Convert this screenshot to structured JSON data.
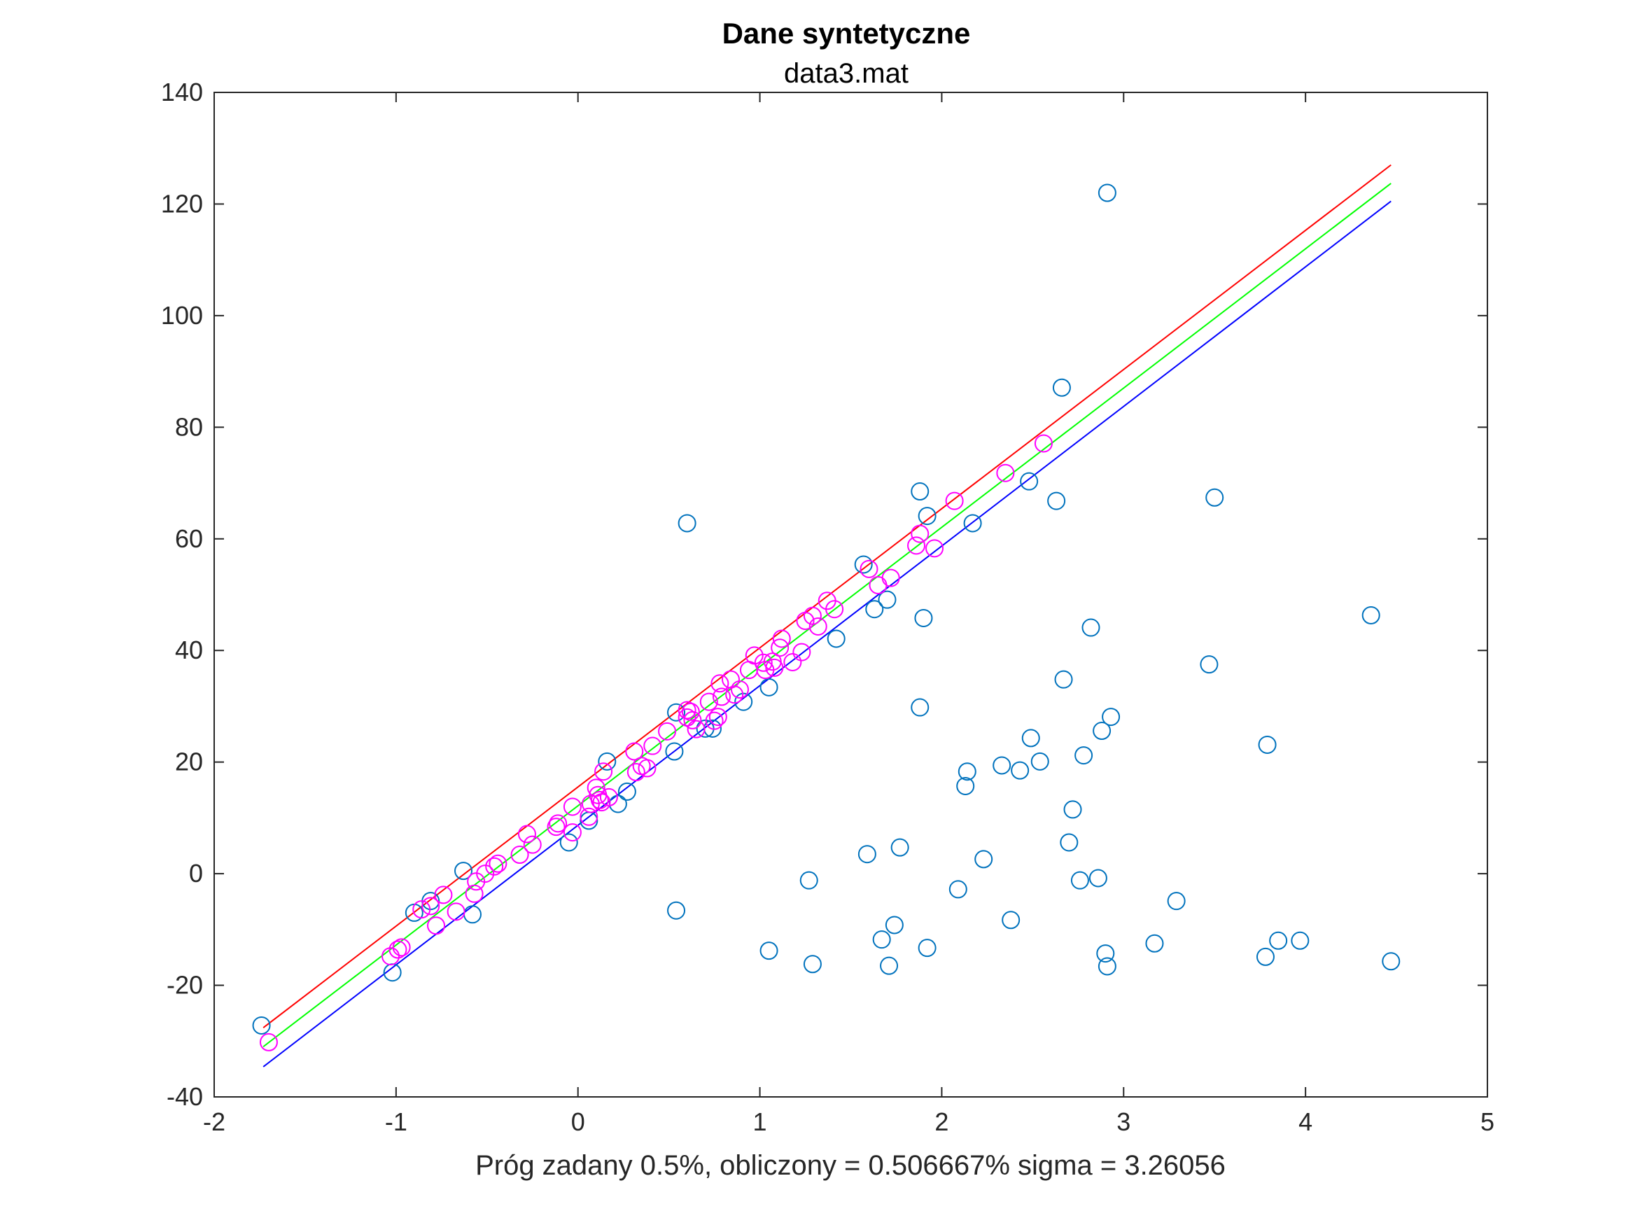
{
  "chart_data": {
    "type": "scatter",
    "title": "Dane syntetyczne",
    "subtitle": "data3.mat",
    "xlabel": "Próg zadany 0.5%, obliczony = 0.506667% sigma = 3.26056",
    "ylabel": "",
    "xlim": [
      -2,
      5
    ],
    "ylim": [
      -40,
      140
    ],
    "xticks": [
      -2,
      -1,
      0,
      1,
      2,
      3,
      4,
      5
    ],
    "yticks": [
      -40,
      -20,
      0,
      20,
      40,
      60,
      80,
      100,
      120,
      140
    ],
    "grid": false,
    "colors": {
      "all_points": "#0072BD",
      "inliers": "#FF00FF",
      "upper_line": "#FF0000",
      "fit_line": "#00FF00",
      "lower_line": "#0000FF",
      "axes": "#262626"
    },
    "lines": [
      {
        "name": "upper",
        "color": "#FF0000",
        "x": [
          -1.73,
          4.47
        ],
        "y": [
          -27.6,
          127.0
        ]
      },
      {
        "name": "fit",
        "color": "#00FF00",
        "x": [
          -1.73,
          4.47
        ],
        "y": [
          -31.0,
          123.7
        ]
      },
      {
        "name": "lower",
        "color": "#0000FF",
        "x": [
          -1.73,
          4.47
        ],
        "y": [
          -34.6,
          120.5
        ]
      }
    ],
    "series": [
      {
        "color": "#0072BD",
        "points": [
          [
            -1.74,
            -27.2
          ],
          [
            -1.02,
            -17.7
          ],
          [
            -0.9,
            -7.0
          ],
          [
            -0.81,
            -4.9
          ],
          [
            -0.63,
            0.5
          ],
          [
            -0.58,
            -7.3
          ],
          [
            -0.05,
            5.6
          ],
          [
            0.06,
            9.5
          ],
          [
            0.16,
            20.1
          ],
          [
            0.22,
            12.5
          ],
          [
            0.27,
            14.7
          ],
          [
            0.53,
            21.9
          ],
          [
            0.54,
            28.9
          ],
          [
            0.54,
            -6.6
          ],
          [
            0.6,
            62.8
          ],
          [
            0.7,
            26.0
          ],
          [
            0.74,
            26.0
          ],
          [
            0.91,
            30.8
          ],
          [
            1.05,
            33.4
          ],
          [
            1.05,
            -13.8
          ],
          [
            1.27,
            -1.2
          ],
          [
            1.29,
            -16.2
          ],
          [
            1.42,
            42.1
          ],
          [
            1.57,
            55.4
          ],
          [
            1.59,
            3.5
          ],
          [
            1.63,
            47.4
          ],
          [
            1.67,
            -11.8
          ],
          [
            1.7,
            49.1
          ],
          [
            1.71,
            -16.5
          ],
          [
            1.74,
            -9.2
          ],
          [
            1.77,
            4.7
          ],
          [
            1.88,
            68.5
          ],
          [
            1.88,
            29.8
          ],
          [
            1.9,
            45.8
          ],
          [
            1.92,
            64.1
          ],
          [
            1.92,
            -13.3
          ],
          [
            2.09,
            -2.8
          ],
          [
            2.13,
            15.7
          ],
          [
            2.14,
            18.3
          ],
          [
            2.17,
            62.8
          ],
          [
            2.23,
            2.6
          ],
          [
            2.33,
            19.4
          ],
          [
            2.38,
            -8.3
          ],
          [
            2.43,
            18.5
          ],
          [
            2.48,
            70.3
          ],
          [
            2.49,
            24.3
          ],
          [
            2.54,
            20.1
          ],
          [
            2.63,
            66.8
          ],
          [
            2.66,
            87.1
          ],
          [
            2.67,
            34.8
          ],
          [
            2.7,
            5.6
          ],
          [
            2.72,
            11.5
          ],
          [
            2.76,
            -1.2
          ],
          [
            2.78,
            21.2
          ],
          [
            2.82,
            44.1
          ],
          [
            2.86,
            -0.8
          ],
          [
            2.88,
            25.6
          ],
          [
            2.9,
            -14.3
          ],
          [
            2.91,
            -16.6
          ],
          [
            2.91,
            122.0
          ],
          [
            2.93,
            28.1
          ],
          [
            3.17,
            -12.5
          ],
          [
            3.29,
            -4.9
          ],
          [
            3.47,
            37.5
          ],
          [
            3.5,
            67.4
          ],
          [
            3.78,
            -14.9
          ],
          [
            3.79,
            23.1
          ],
          [
            3.85,
            -12.0
          ],
          [
            3.97,
            -12.0
          ],
          [
            4.36,
            46.3
          ],
          [
            4.47,
            -15.7
          ]
        ]
      },
      {
        "color": "#FF00FF",
        "points": [
          [
            -1.7,
            -30.2
          ],
          [
            -1.03,
            -14.8
          ],
          [
            -0.99,
            -13.6
          ],
          [
            -0.97,
            -13.2
          ],
          [
            -0.86,
            -6.4
          ],
          [
            -0.81,
            -5.8
          ],
          [
            -0.78,
            -9.3
          ],
          [
            -0.74,
            -3.8
          ],
          [
            -0.67,
            -6.8
          ],
          [
            -0.57,
            -3.6
          ],
          [
            -0.56,
            -1.4
          ],
          [
            -0.51,
            0.0
          ],
          [
            -0.46,
            1.3
          ],
          [
            -0.44,
            1.8
          ],
          [
            -0.32,
            3.4
          ],
          [
            -0.28,
            7.1
          ],
          [
            -0.25,
            5.2
          ],
          [
            -0.12,
            8.4
          ],
          [
            -0.11,
            9.0
          ],
          [
            -0.03,
            12.0
          ],
          [
            -0.03,
            7.4
          ],
          [
            0.06,
            10.2
          ],
          [
            0.07,
            12.5
          ],
          [
            0.1,
            15.4
          ],
          [
            0.11,
            14.1
          ],
          [
            0.12,
            13.2
          ],
          [
            0.13,
            12.8
          ],
          [
            0.14,
            18.3
          ],
          [
            0.17,
            13.7
          ],
          [
            0.31,
            21.9
          ],
          [
            0.32,
            18.2
          ],
          [
            0.35,
            19.3
          ],
          [
            0.38,
            18.9
          ],
          [
            0.41,
            22.9
          ],
          [
            0.49,
            25.5
          ],
          [
            0.6,
            28.0
          ],
          [
            0.6,
            29.3
          ],
          [
            0.62,
            29.0
          ],
          [
            0.63,
            27.5
          ],
          [
            0.65,
            25.9
          ],
          [
            0.72,
            30.8
          ],
          [
            0.75,
            27.4
          ],
          [
            0.77,
            28.1
          ],
          [
            0.78,
            34.1
          ],
          [
            0.79,
            31.7
          ],
          [
            0.84,
            34.8
          ],
          [
            0.86,
            32.1
          ],
          [
            0.89,
            33.0
          ],
          [
            0.94,
            36.5
          ],
          [
            0.97,
            39.1
          ],
          [
            1.02,
            37.8
          ],
          [
            1.03,
            36.5
          ],
          [
            1.07,
            38.0
          ],
          [
            1.08,
            36.9
          ],
          [
            1.11,
            40.5
          ],
          [
            1.12,
            42.1
          ],
          [
            1.18,
            37.9
          ],
          [
            1.23,
            39.7
          ],
          [
            1.25,
            45.3
          ],
          [
            1.29,
            46.2
          ],
          [
            1.32,
            44.3
          ],
          [
            1.37,
            48.9
          ],
          [
            1.41,
            47.4
          ],
          [
            1.6,
            54.6
          ],
          [
            1.65,
            51.7
          ],
          [
            1.72,
            53.0
          ],
          [
            1.86,
            58.8
          ],
          [
            1.88,
            60.9
          ],
          [
            1.96,
            58.3
          ],
          [
            2.07,
            66.8
          ],
          [
            2.35,
            71.8
          ],
          [
            2.56,
            77.1
          ]
        ]
      }
    ]
  }
}
